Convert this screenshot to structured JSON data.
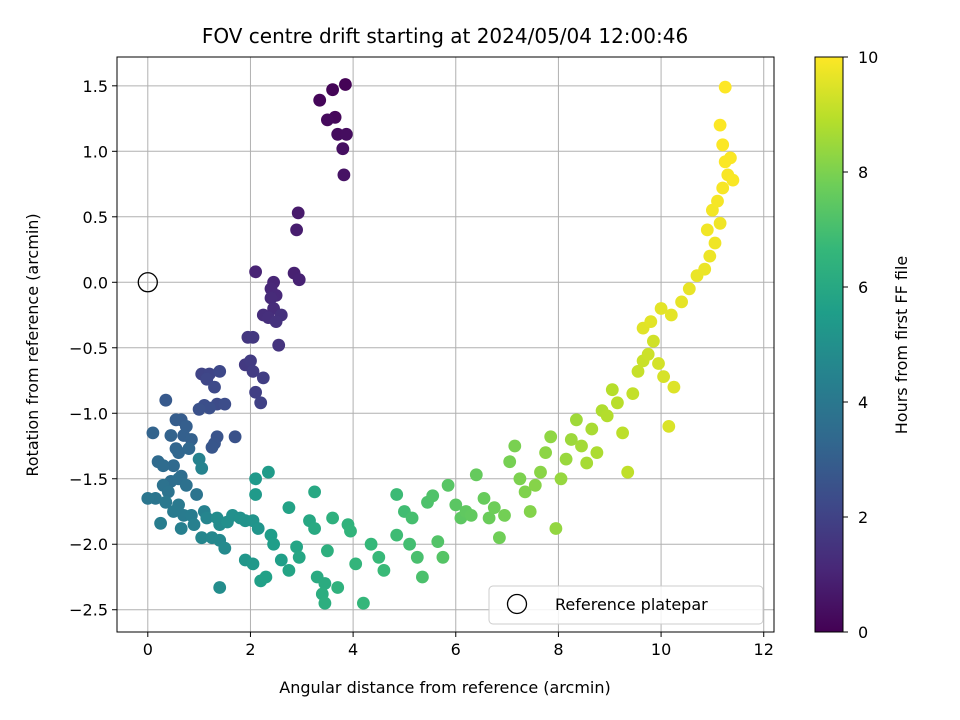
{
  "chart_data": {
    "type": "scatter",
    "title": "FOV centre drift starting at 2024/05/04 12:00:46",
    "xlabel": "Angular distance from reference (arcmin)",
    "ylabel": "Rotation from reference (arcmin)",
    "xlim": [
      -0.6,
      12.2
    ],
    "ylim": [
      -2.67,
      1.72
    ],
    "xticks": [
      0,
      2,
      4,
      6,
      8,
      10,
      12
    ],
    "yticks": [
      -2.5,
      -2.0,
      -1.5,
      -1.0,
      -0.5,
      0.0,
      0.5,
      1.0,
      1.5
    ],
    "xtick_labels": [
      "0",
      "2",
      "4",
      "6",
      "8",
      "10",
      "12"
    ],
    "ytick_labels": [
      "−2.5",
      "−2.0",
      "−1.5",
      "−1.0",
      "−0.5",
      "0.0",
      "0.5",
      "1.0",
      "1.5"
    ],
    "grid": true,
    "legend": {
      "position": "lower-right",
      "entries": [
        {
          "label": "Reference platepar",
          "marker": "open-circle"
        }
      ]
    },
    "reference_point": {
      "x": 0.0,
      "y": 0.0
    },
    "colorbar": {
      "label": "Hours from first FF file",
      "colormap": "viridis",
      "range": [
        0,
        10
      ],
      "ticks": [
        0,
        2,
        4,
        6,
        8,
        10
      ],
      "tick_labels": [
        "0",
        "2",
        "4",
        "6",
        "8",
        "10"
      ]
    },
    "colormap_stops": [
      "#440154",
      "#482878",
      "#3e4989",
      "#31688e",
      "#26828e",
      "#1f9e89",
      "#35b779",
      "#6ece58",
      "#b5de2b",
      "#fde725"
    ],
    "series": [
      {
        "value": "hours",
        "points": [
          [
            3.85,
            1.51,
            0.05
          ],
          [
            3.6,
            1.47,
            0.1
          ],
          [
            3.35,
            1.39,
            0.15
          ],
          [
            3.65,
            1.26,
            0.2
          ],
          [
            3.5,
            1.24,
            0.25
          ],
          [
            3.7,
            1.13,
            0.3
          ],
          [
            3.87,
            1.13,
            0.35
          ],
          [
            3.8,
            1.02,
            0.4
          ],
          [
            3.82,
            0.82,
            0.5
          ],
          [
            2.93,
            0.53,
            0.7
          ],
          [
            2.9,
            0.4,
            0.8
          ],
          [
            2.85,
            0.07,
            0.9
          ],
          [
            2.95,
            0.02,
            0.95
          ],
          [
            2.1,
            0.08,
            1.0
          ],
          [
            2.45,
            0.0,
            1.05
          ],
          [
            2.4,
            -0.05,
            1.1
          ],
          [
            2.5,
            -0.1,
            1.15
          ],
          [
            2.4,
            -0.12,
            1.2
          ],
          [
            2.45,
            -0.2,
            1.25
          ],
          [
            2.25,
            -0.25,
            1.3
          ],
          [
            2.35,
            -0.27,
            1.35
          ],
          [
            2.6,
            -0.25,
            1.4
          ],
          [
            2.5,
            -0.3,
            1.45
          ],
          [
            2.55,
            -0.48,
            1.5
          ],
          [
            1.95,
            -0.42,
            1.6
          ],
          [
            2.05,
            -0.42,
            1.65
          ],
          [
            1.9,
            -0.63,
            1.7
          ],
          [
            2.0,
            -0.6,
            1.75
          ],
          [
            2.05,
            -0.68,
            1.8
          ],
          [
            2.25,
            -0.73,
            1.85
          ],
          [
            2.1,
            -0.84,
            1.9
          ],
          [
            2.2,
            -0.92,
            1.95
          ],
          [
            1.05,
            -0.7,
            2.05
          ],
          [
            1.2,
            -0.7,
            2.1
          ],
          [
            1.15,
            -0.74,
            2.15
          ],
          [
            1.4,
            -0.68,
            2.2
          ],
          [
            1.3,
            -0.8,
            2.25
          ],
          [
            1.35,
            -0.93,
            2.3
          ],
          [
            1.5,
            -0.93,
            2.35
          ],
          [
            1.1,
            -0.94,
            2.4
          ],
          [
            1.2,
            -0.96,
            2.45
          ],
          [
            1.0,
            -0.97,
            2.5
          ],
          [
            1.7,
            -1.18,
            2.55
          ],
          [
            1.35,
            -1.18,
            2.6
          ],
          [
            1.3,
            -1.23,
            2.65
          ],
          [
            1.25,
            -1.26,
            2.7
          ],
          [
            0.35,
            -0.9,
            2.8
          ],
          [
            0.65,
            -1.05,
            2.9
          ],
          [
            0.55,
            -1.05,
            2.95
          ],
          [
            0.75,
            -1.1,
            3.0
          ],
          [
            0.7,
            -1.17,
            3.05
          ],
          [
            0.85,
            -1.2,
            3.1
          ],
          [
            0.45,
            -1.17,
            3.15
          ],
          [
            0.1,
            -1.15,
            3.2
          ],
          [
            0.55,
            -1.27,
            3.25
          ],
          [
            0.6,
            -1.3,
            3.3
          ],
          [
            0.8,
            -1.27,
            3.35
          ],
          [
            0.5,
            -1.4,
            3.4
          ],
          [
            0.2,
            -1.37,
            3.45
          ],
          [
            0.3,
            -1.4,
            3.5
          ],
          [
            0.65,
            -1.48,
            3.55
          ],
          [
            0.45,
            -1.52,
            3.6
          ],
          [
            0.6,
            -1.5,
            3.65
          ],
          [
            0.75,
            -1.55,
            3.7
          ],
          [
            0.3,
            -1.55,
            3.75
          ],
          [
            0.4,
            -1.6,
            3.8
          ],
          [
            0.95,
            -1.62,
            3.85
          ],
          [
            0.15,
            -1.65,
            3.9
          ],
          [
            0.0,
            -1.65,
            3.95
          ],
          [
            0.35,
            -1.68,
            4.0
          ],
          [
            0.6,
            -1.7,
            4.05
          ],
          [
            0.5,
            -1.75,
            4.1
          ],
          [
            0.7,
            -1.78,
            4.15
          ],
          [
            0.85,
            -1.78,
            4.2
          ],
          [
            0.25,
            -1.84,
            4.25
          ],
          [
            0.65,
            -1.88,
            4.3
          ],
          [
            0.9,
            -1.85,
            4.35
          ],
          [
            1.1,
            -1.75,
            4.4
          ],
          [
            1.0,
            -1.35,
            4.45
          ],
          [
            1.05,
            -1.42,
            4.5
          ],
          [
            1.15,
            -1.8,
            4.55
          ],
          [
            1.05,
            -1.95,
            4.6
          ],
          [
            1.25,
            -1.95,
            4.65
          ],
          [
            1.4,
            -1.97,
            4.7
          ],
          [
            1.5,
            -2.03,
            4.75
          ],
          [
            1.4,
            -1.85,
            4.8
          ],
          [
            1.35,
            -1.8,
            4.85
          ],
          [
            1.4,
            -2.33,
            4.9
          ],
          [
            1.55,
            -1.83,
            4.95
          ],
          [
            1.65,
            -1.78,
            5.0
          ],
          [
            1.8,
            -1.8,
            5.05
          ],
          [
            1.9,
            -1.82,
            5.1
          ],
          [
            2.05,
            -1.82,
            5.15
          ],
          [
            2.15,
            -1.88,
            5.2
          ],
          [
            1.9,
            -2.12,
            5.25
          ],
          [
            2.05,
            -2.15,
            5.3
          ],
          [
            2.1,
            -1.5,
            5.35
          ],
          [
            2.1,
            -1.62,
            5.4
          ],
          [
            2.35,
            -1.45,
            5.45
          ],
          [
            2.4,
            -1.93,
            5.5
          ],
          [
            2.45,
            -2.0,
            5.55
          ],
          [
            2.6,
            -2.12,
            5.6
          ],
          [
            2.2,
            -2.28,
            5.65
          ],
          [
            2.3,
            -2.25,
            5.7
          ],
          [
            2.75,
            -1.72,
            5.75
          ],
          [
            2.75,
            -2.2,
            5.8
          ],
          [
            2.9,
            -2.02,
            5.85
          ],
          [
            2.95,
            -2.1,
            5.9
          ],
          [
            3.15,
            -1.82,
            5.95
          ],
          [
            3.25,
            -1.6,
            6.0
          ],
          [
            3.25,
            -1.88,
            6.05
          ],
          [
            3.3,
            -2.25,
            6.1
          ],
          [
            3.45,
            -2.3,
            6.15
          ],
          [
            3.4,
            -2.38,
            6.2
          ],
          [
            3.45,
            -2.45,
            6.25
          ],
          [
            3.5,
            -2.05,
            6.3
          ],
          [
            3.6,
            -1.8,
            6.35
          ],
          [
            3.7,
            -2.33,
            6.4
          ],
          [
            3.9,
            -1.85,
            6.45
          ],
          [
            3.95,
            -1.9,
            6.5
          ],
          [
            4.05,
            -2.15,
            6.55
          ],
          [
            4.2,
            -2.45,
            6.6
          ],
          [
            4.35,
            -2.0,
            6.65
          ],
          [
            4.5,
            -2.1,
            6.7
          ],
          [
            4.6,
            -2.2,
            6.75
          ],
          [
            4.85,
            -1.62,
            6.8
          ],
          [
            4.85,
            -1.93,
            6.85
          ],
          [
            5.0,
            -1.75,
            6.9
          ],
          [
            5.1,
            -2.0,
            6.95
          ],
          [
            5.15,
            -1.8,
            7.0
          ],
          [
            5.25,
            -2.1,
            7.05
          ],
          [
            5.35,
            -2.25,
            7.1
          ],
          [
            5.45,
            -1.68,
            7.15
          ],
          [
            5.55,
            -1.63,
            7.2
          ],
          [
            5.65,
            -1.98,
            7.25
          ],
          [
            5.75,
            -2.1,
            7.3
          ],
          [
            5.85,
            -1.55,
            7.35
          ],
          [
            6.0,
            -1.7,
            7.4
          ],
          [
            6.1,
            -1.8,
            7.45
          ],
          [
            6.2,
            -1.75,
            7.5
          ],
          [
            6.3,
            -1.78,
            7.55
          ],
          [
            6.4,
            -1.47,
            7.6
          ],
          [
            6.55,
            -1.65,
            7.65
          ],
          [
            6.65,
            -1.8,
            7.7
          ],
          [
            6.75,
            -1.72,
            7.75
          ],
          [
            6.85,
            -1.95,
            7.8
          ],
          [
            6.95,
            -1.78,
            7.85
          ],
          [
            7.05,
            -1.37,
            7.9
          ],
          [
            7.15,
            -1.25,
            7.95
          ],
          [
            7.25,
            -1.5,
            8.0
          ],
          [
            7.35,
            -1.6,
            8.05
          ],
          [
            7.45,
            -1.75,
            8.1
          ],
          [
            7.55,
            -1.55,
            8.15
          ],
          [
            7.65,
            -1.45,
            8.2
          ],
          [
            7.75,
            -1.3,
            8.25
          ],
          [
            7.85,
            -1.18,
            8.3
          ],
          [
            7.95,
            -1.88,
            8.35
          ],
          [
            8.05,
            -1.5,
            8.4
          ],
          [
            8.15,
            -1.35,
            8.45
          ],
          [
            8.25,
            -1.2,
            8.5
          ],
          [
            8.35,
            -1.05,
            8.55
          ],
          [
            8.45,
            -1.25,
            8.6
          ],
          [
            8.55,
            -1.38,
            8.65
          ],
          [
            8.65,
            -1.12,
            8.7
          ],
          [
            8.75,
            -1.3,
            8.75
          ],
          [
            8.85,
            -0.98,
            8.8
          ],
          [
            8.95,
            -1.02,
            8.85
          ],
          [
            9.05,
            -0.82,
            8.9
          ],
          [
            9.15,
            -0.92,
            8.95
          ],
          [
            9.25,
            -1.15,
            9.0
          ],
          [
            9.35,
            -1.45,
            9.05
          ],
          [
            9.45,
            -0.85,
            9.1
          ],
          [
            9.55,
            -0.68,
            9.15
          ],
          [
            9.65,
            -0.6,
            9.2
          ],
          [
            9.75,
            -0.55,
            9.25
          ],
          [
            9.85,
            -0.45,
            9.3
          ],
          [
            9.95,
            -0.62,
            9.35
          ],
          [
            10.05,
            -0.72,
            9.4
          ],
          [
            10.15,
            -1.1,
            9.45
          ],
          [
            10.25,
            -0.8,
            9.5
          ],
          [
            9.65,
            -0.35,
            9.55
          ],
          [
            9.8,
            -0.3,
            9.58
          ],
          [
            10.0,
            -0.2,
            9.6
          ],
          [
            10.2,
            -0.25,
            9.62
          ],
          [
            10.4,
            -0.15,
            9.65
          ],
          [
            10.55,
            -0.05,
            9.68
          ],
          [
            10.7,
            0.05,
            9.7
          ],
          [
            10.85,
            0.1,
            9.72
          ],
          [
            10.95,
            0.2,
            9.75
          ],
          [
            11.05,
            0.3,
            9.78
          ],
          [
            11.15,
            0.45,
            9.8
          ],
          [
            10.9,
            0.4,
            9.82
          ],
          [
            11.0,
            0.55,
            9.85
          ],
          [
            11.1,
            0.62,
            9.88
          ],
          [
            11.2,
            0.72,
            9.9
          ],
          [
            11.3,
            0.82,
            9.92
          ],
          [
            11.4,
            0.78,
            9.94
          ],
          [
            11.25,
            0.92,
            9.95
          ],
          [
            11.35,
            0.95,
            9.96
          ],
          [
            11.2,
            1.05,
            9.97
          ],
          [
            11.15,
            1.2,
            9.98
          ],
          [
            11.25,
            1.49,
            10.0
          ]
        ]
      }
    ]
  }
}
